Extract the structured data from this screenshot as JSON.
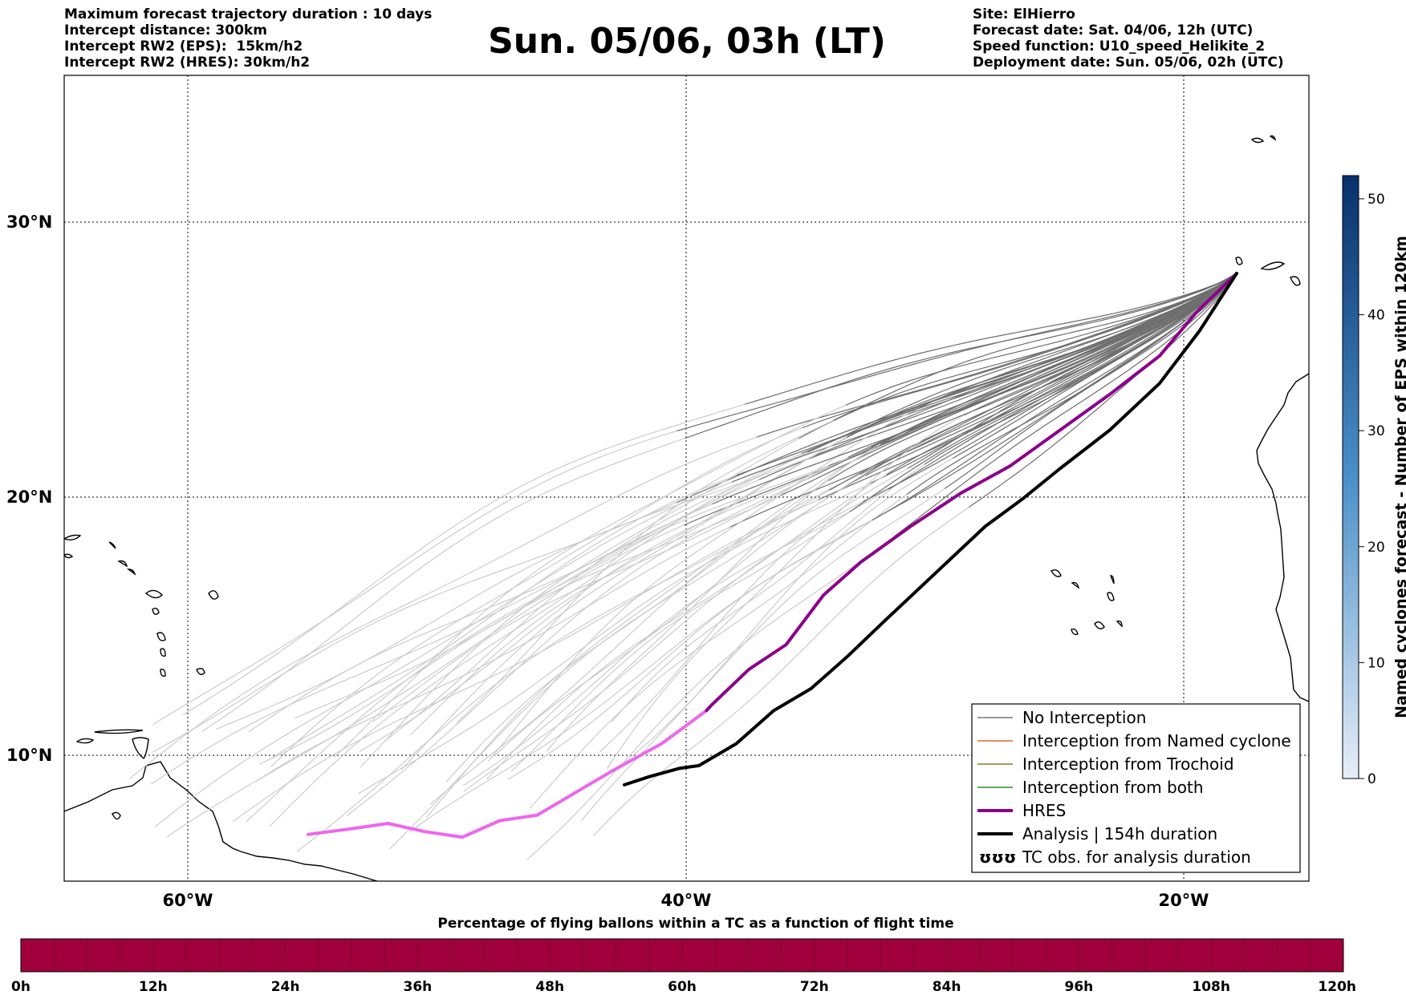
{
  "header_left": [
    "Maximum forecast trajectory duration : 10 days",
    "Intercept distance: 300km",
    "Intercept RW2 (EPS):  15km/h2",
    "Intercept RW2 (HRES): 30km/h2"
  ],
  "title": "Sun. 05/06, 03h (LT)",
  "header_right": [
    "Site: ElHierro",
    "Forecast date: Sat. 04/06, 12h (UTC)",
    "Speed function: U10_speed_Helikite_2",
    "Deployment date: Sun. 05/06, 02h (UTC)"
  ],
  "map": {
    "lon_ticks": [
      "60°W",
      "40°W",
      "20°W"
    ],
    "lat_ticks": [
      "30°N",
      "20°N",
      "10°N"
    ],
    "extent_lon": [
      -65,
      -15
    ],
    "extent_lat": [
      5.4,
      34.7
    ],
    "release_point": [
      -17.9,
      27.5
    ]
  },
  "legend": {
    "items": [
      {
        "label": "No Interception",
        "color": "#777777",
        "style": "thin"
      },
      {
        "label": "Interception from Named cyclone",
        "color": "#e8602c",
        "style": "thin"
      },
      {
        "label": "Interception from Trochoid",
        "color": "#808020",
        "style": "thin"
      },
      {
        "label": "Interception from both",
        "color": "#2e8b2e",
        "style": "thin"
      },
      {
        "label": "HRES",
        "color": "#8b008b",
        "style": "thick"
      },
      {
        "label": "Analysis | 154h duration",
        "color": "#000000",
        "style": "thick"
      },
      {
        "label": "TC obs. for analysis duration",
        "color": "#000000",
        "style": "symbol",
        "symbol": "ʊʊʊ"
      }
    ]
  },
  "colorbar": {
    "label": "Named cyclones forecast - Number of EPS within 120km",
    "ticks": [
      "0",
      "10",
      "20",
      "30",
      "40",
      "50"
    ],
    "min": 0,
    "max": 52,
    "color_low": "#e6eef8",
    "color_high": "#08306b"
  },
  "progress": {
    "title": "Percentage of flying ballons within a TC as a function of flight time",
    "ticks": [
      "0h",
      "12h",
      "24h",
      "36h",
      "48h",
      "60h",
      "72h",
      "84h",
      "96h",
      "108h",
      "120h"
    ],
    "color": "#a0003c",
    "segments": 40
  },
  "colors": {
    "no_interception_late": "#6e6e6e",
    "no_interception_early": "#cccccc",
    "hres_late": "#8b008b",
    "hres_early": "#ee66ee",
    "analysis": "#000000"
  },
  "hres_track": [
    [
      -17.9,
      27.5
    ],
    [
      -19.5,
      26.1
    ],
    [
      -21,
      24.5
    ],
    [
      -23,
      23.1
    ],
    [
      -25,
      21.8
    ],
    [
      -27,
      20.5
    ],
    [
      -29,
      19.5
    ],
    [
      -31,
      18.3
    ],
    [
      -33,
      17.0
    ],
    [
      -34.5,
      15.8
    ],
    [
      -36,
      14.0
    ],
    [
      -37.5,
      13.1
    ],
    [
      -39,
      11.8
    ],
    [
      -39.2,
      11.6
    ],
    [
      -41,
      10.4
    ],
    [
      -43,
      9.4
    ],
    [
      -44.5,
      8.6
    ],
    [
      -46,
      7.8
    ],
    [
      -47.5,
      7.6
    ],
    [
      -49,
      7.0
    ],
    [
      -50.5,
      7.2
    ],
    [
      -52,
      7.5
    ],
    [
      -53.5,
      7.3
    ],
    [
      -55.2,
      7.1
    ]
  ],
  "hres_split_index": 13,
  "analysis_track": [
    [
      -17.9,
      27.5
    ],
    [
      -19.4,
      25.4
    ],
    [
      -21,
      23.5
    ],
    [
      -23,
      21.8
    ],
    [
      -25,
      20.4
    ],
    [
      -26.5,
      19.3
    ],
    [
      -28,
      18.3
    ],
    [
      -30,
      16.6
    ],
    [
      -32,
      14.9
    ],
    [
      -33.5,
      13.6
    ],
    [
      -35,
      12.4
    ],
    [
      -36.5,
      11.6
    ],
    [
      -38,
      10.4
    ],
    [
      -39.5,
      9.6
    ],
    [
      -40.3,
      9.5
    ],
    [
      -41.5,
      9.2
    ],
    [
      -42.5,
      8.9
    ]
  ]
}
